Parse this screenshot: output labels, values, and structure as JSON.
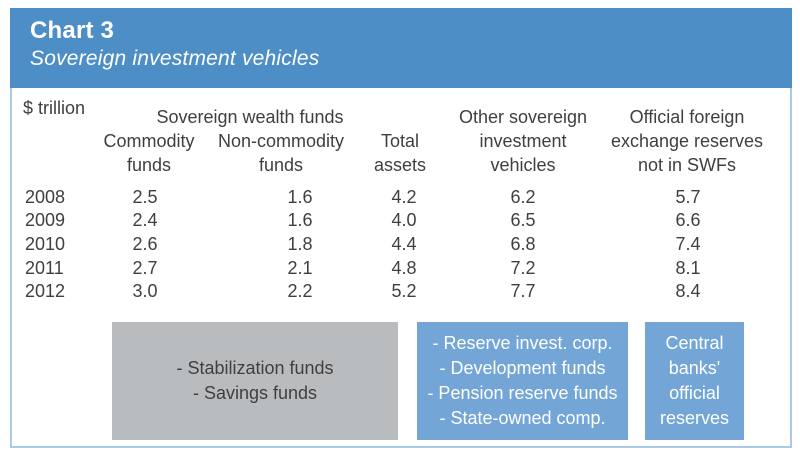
{
  "header": {
    "label": "Chart 3",
    "title": "Sovereign investment vehicles"
  },
  "table": {
    "unit": "$ trillion",
    "group_header": "Sovereign wealth funds",
    "columns": {
      "commodity": "Commodity\nfunds",
      "non_commodity": "Non-commodity\nfunds",
      "total": "Total\nassets",
      "other": "Other sovereign\ninvestment\nvehicles",
      "official": "Official foreign\nexchange reserves\nnot in SWFs"
    },
    "rows": [
      {
        "year": "2008",
        "commodity": "2.5",
        "non_commodity": "1.6",
        "total": "4.2",
        "other": "6.2",
        "official": "5.7"
      },
      {
        "year": "2009",
        "commodity": "2.4",
        "non_commodity": "1.6",
        "total": "4.0",
        "other": "6.5",
        "official": "6.6"
      },
      {
        "year": "2010",
        "commodity": "2.6",
        "non_commodity": "1.8",
        "total": "4.4",
        "other": "6.8",
        "official": "7.4"
      },
      {
        "year": "2011",
        "commodity": "2.7",
        "non_commodity": "2.1",
        "total": "4.8",
        "other": "7.2",
        "official": "8.1"
      },
      {
        "year": "2012",
        "commodity": "3.0",
        "non_commodity": "2.2",
        "total": "5.2",
        "other": "7.7",
        "official": "8.4"
      }
    ]
  },
  "legend": {
    "swf_box": {
      "lines": [
        "- Stabilization funds",
        "- Savings funds"
      ]
    },
    "other_box": {
      "lines": [
        "- Reserve invest. corp.",
        "- Development funds",
        "- Pension reserve funds",
        "- State-owned comp."
      ]
    },
    "reserves_box": {
      "lines": [
        "Central",
        "banks'",
        "official",
        "reserves"
      ]
    }
  },
  "colors": {
    "header_blue": "#4d8ec6",
    "legend_blue": "#73a6d6",
    "legend_gray": "#b9bcbe",
    "panel_border": "#a9c9e7",
    "text_dark": "#3f3f3f",
    "text_light": "#ffffff"
  },
  "chart_data": {
    "type": "table",
    "title": "Chart 3 - Sovereign investment vehicles",
    "unit": "$ trillion",
    "categories": [
      "2008",
      "2009",
      "2010",
      "2011",
      "2012"
    ],
    "series": [
      {
        "name": "Sovereign wealth funds - Commodity funds",
        "values": [
          2.5,
          2.4,
          2.6,
          2.7,
          3.0
        ]
      },
      {
        "name": "Sovereign wealth funds - Non-commodity funds",
        "values": [
          1.6,
          1.6,
          1.8,
          2.1,
          2.2
        ]
      },
      {
        "name": "Sovereign wealth funds - Total assets",
        "values": [
          4.2,
          4.0,
          4.4,
          4.8,
          5.2
        ]
      },
      {
        "name": "Other sovereign investment vehicles",
        "values": [
          6.2,
          6.5,
          6.8,
          7.2,
          7.7
        ]
      },
      {
        "name": "Official foreign exchange reserves not in SWFs",
        "values": [
          5.7,
          6.6,
          7.4,
          8.1,
          8.4
        ]
      }
    ],
    "annotations": {
      "sovereign_wealth_funds_types": [
        "Stabilization funds",
        "Savings funds"
      ],
      "other_sovereign_investment_vehicles_types": [
        "Reserve invest. corp.",
        "Development funds",
        "Pension reserve funds",
        "State-owned comp."
      ],
      "official_reserves_description": "Central banks' official reserves"
    }
  }
}
